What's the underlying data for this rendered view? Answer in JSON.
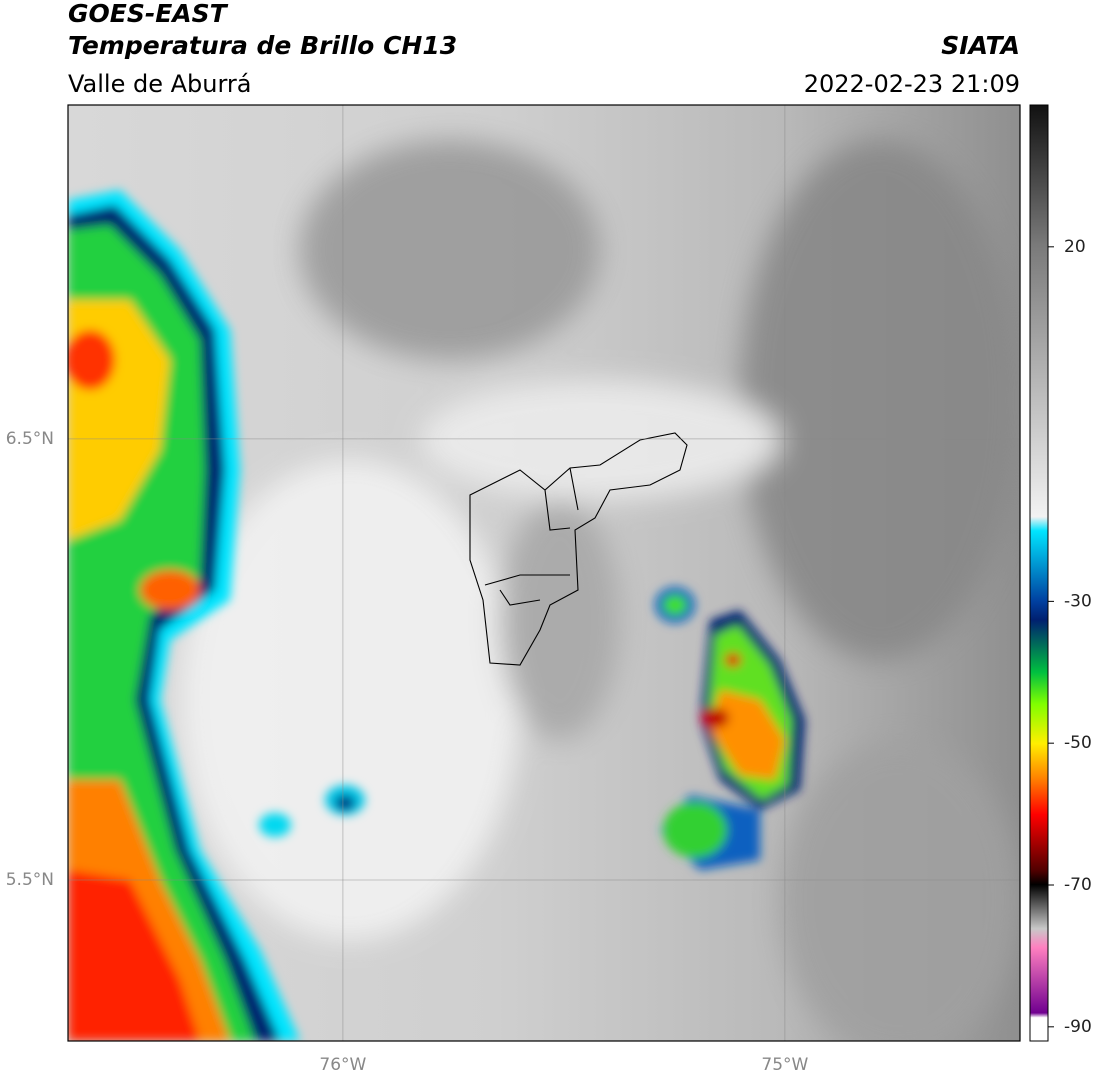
{
  "header": {
    "satellite": "GOES-EAST",
    "product": "Temperatura de Brillo CH13",
    "region": "Valle de Aburrá",
    "source": "SIATA",
    "datetime": "2022-02-23 21:09"
  },
  "map": {
    "lon_lim": [
      -76.622,
      -74.468
    ],
    "lat_lim": [
      5.135,
      7.257
    ],
    "lon_ticks": [
      {
        "value": -76,
        "label": "76°W"
      },
      {
        "value": -75,
        "label": "75°W"
      }
    ],
    "lat_ticks": [
      {
        "value": 5.5,
        "label": "5.5°N"
      },
      {
        "value": 6.5,
        "label": "6.5°N"
      }
    ]
  },
  "colorbar": {
    "lim": [
      -92,
      40
    ],
    "ticks": [
      20,
      -30,
      -50,
      -70,
      -90
    ]
  }
}
